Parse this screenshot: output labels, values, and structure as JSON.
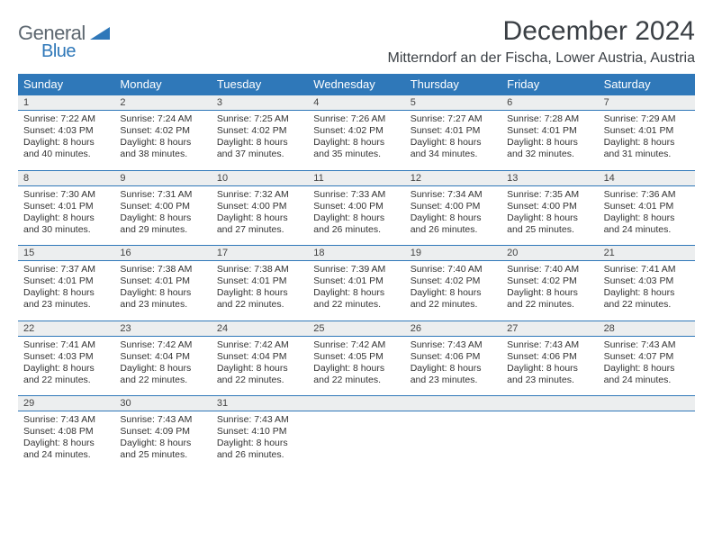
{
  "logo": {
    "line1": "General",
    "line2": "Blue"
  },
  "title": "December 2024",
  "location": "Mitterndorf an der Fischa, Lower Austria, Austria",
  "colors": {
    "header_bg": "#2f78b9",
    "header_text": "#ffffff",
    "daynum_bg": "#eceeef",
    "border": "#2f78b9",
    "body_text": "#333333",
    "logo_gray": "#5d6770",
    "logo_blue": "#2f78b9"
  },
  "dayNames": [
    "Sunday",
    "Monday",
    "Tuesday",
    "Wednesday",
    "Thursday",
    "Friday",
    "Saturday"
  ],
  "weeks": [
    {
      "nums": [
        "1",
        "2",
        "3",
        "4",
        "5",
        "6",
        "7"
      ],
      "cells": [
        {
          "sunrise": "Sunrise: 7:22 AM",
          "sunset": "Sunset: 4:03 PM",
          "day1": "Daylight: 8 hours",
          "day2": "and 40 minutes."
        },
        {
          "sunrise": "Sunrise: 7:24 AM",
          "sunset": "Sunset: 4:02 PM",
          "day1": "Daylight: 8 hours",
          "day2": "and 38 minutes."
        },
        {
          "sunrise": "Sunrise: 7:25 AM",
          "sunset": "Sunset: 4:02 PM",
          "day1": "Daylight: 8 hours",
          "day2": "and 37 minutes."
        },
        {
          "sunrise": "Sunrise: 7:26 AM",
          "sunset": "Sunset: 4:02 PM",
          "day1": "Daylight: 8 hours",
          "day2": "and 35 minutes."
        },
        {
          "sunrise": "Sunrise: 7:27 AM",
          "sunset": "Sunset: 4:01 PM",
          "day1": "Daylight: 8 hours",
          "day2": "and 34 minutes."
        },
        {
          "sunrise": "Sunrise: 7:28 AM",
          "sunset": "Sunset: 4:01 PM",
          "day1": "Daylight: 8 hours",
          "day2": "and 32 minutes."
        },
        {
          "sunrise": "Sunrise: 7:29 AM",
          "sunset": "Sunset: 4:01 PM",
          "day1": "Daylight: 8 hours",
          "day2": "and 31 minutes."
        }
      ]
    },
    {
      "nums": [
        "8",
        "9",
        "10",
        "11",
        "12",
        "13",
        "14"
      ],
      "cells": [
        {
          "sunrise": "Sunrise: 7:30 AM",
          "sunset": "Sunset: 4:01 PM",
          "day1": "Daylight: 8 hours",
          "day2": "and 30 minutes."
        },
        {
          "sunrise": "Sunrise: 7:31 AM",
          "sunset": "Sunset: 4:00 PM",
          "day1": "Daylight: 8 hours",
          "day2": "and 29 minutes."
        },
        {
          "sunrise": "Sunrise: 7:32 AM",
          "sunset": "Sunset: 4:00 PM",
          "day1": "Daylight: 8 hours",
          "day2": "and 27 minutes."
        },
        {
          "sunrise": "Sunrise: 7:33 AM",
          "sunset": "Sunset: 4:00 PM",
          "day1": "Daylight: 8 hours",
          "day2": "and 26 minutes."
        },
        {
          "sunrise": "Sunrise: 7:34 AM",
          "sunset": "Sunset: 4:00 PM",
          "day1": "Daylight: 8 hours",
          "day2": "and 26 minutes."
        },
        {
          "sunrise": "Sunrise: 7:35 AM",
          "sunset": "Sunset: 4:00 PM",
          "day1": "Daylight: 8 hours",
          "day2": "and 25 minutes."
        },
        {
          "sunrise": "Sunrise: 7:36 AM",
          "sunset": "Sunset: 4:01 PM",
          "day1": "Daylight: 8 hours",
          "day2": "and 24 minutes."
        }
      ]
    },
    {
      "nums": [
        "15",
        "16",
        "17",
        "18",
        "19",
        "20",
        "21"
      ],
      "cells": [
        {
          "sunrise": "Sunrise: 7:37 AM",
          "sunset": "Sunset: 4:01 PM",
          "day1": "Daylight: 8 hours",
          "day2": "and 23 minutes."
        },
        {
          "sunrise": "Sunrise: 7:38 AM",
          "sunset": "Sunset: 4:01 PM",
          "day1": "Daylight: 8 hours",
          "day2": "and 23 minutes."
        },
        {
          "sunrise": "Sunrise: 7:38 AM",
          "sunset": "Sunset: 4:01 PM",
          "day1": "Daylight: 8 hours",
          "day2": "and 22 minutes."
        },
        {
          "sunrise": "Sunrise: 7:39 AM",
          "sunset": "Sunset: 4:01 PM",
          "day1": "Daylight: 8 hours",
          "day2": "and 22 minutes."
        },
        {
          "sunrise": "Sunrise: 7:40 AM",
          "sunset": "Sunset: 4:02 PM",
          "day1": "Daylight: 8 hours",
          "day2": "and 22 minutes."
        },
        {
          "sunrise": "Sunrise: 7:40 AM",
          "sunset": "Sunset: 4:02 PM",
          "day1": "Daylight: 8 hours",
          "day2": "and 22 minutes."
        },
        {
          "sunrise": "Sunrise: 7:41 AM",
          "sunset": "Sunset: 4:03 PM",
          "day1": "Daylight: 8 hours",
          "day2": "and 22 minutes."
        }
      ]
    },
    {
      "nums": [
        "22",
        "23",
        "24",
        "25",
        "26",
        "27",
        "28"
      ],
      "cells": [
        {
          "sunrise": "Sunrise: 7:41 AM",
          "sunset": "Sunset: 4:03 PM",
          "day1": "Daylight: 8 hours",
          "day2": "and 22 minutes."
        },
        {
          "sunrise": "Sunrise: 7:42 AM",
          "sunset": "Sunset: 4:04 PM",
          "day1": "Daylight: 8 hours",
          "day2": "and 22 minutes."
        },
        {
          "sunrise": "Sunrise: 7:42 AM",
          "sunset": "Sunset: 4:04 PM",
          "day1": "Daylight: 8 hours",
          "day2": "and 22 minutes."
        },
        {
          "sunrise": "Sunrise: 7:42 AM",
          "sunset": "Sunset: 4:05 PM",
          "day1": "Daylight: 8 hours",
          "day2": "and 22 minutes."
        },
        {
          "sunrise": "Sunrise: 7:43 AM",
          "sunset": "Sunset: 4:06 PM",
          "day1": "Daylight: 8 hours",
          "day2": "and 23 minutes."
        },
        {
          "sunrise": "Sunrise: 7:43 AM",
          "sunset": "Sunset: 4:06 PM",
          "day1": "Daylight: 8 hours",
          "day2": "and 23 minutes."
        },
        {
          "sunrise": "Sunrise: 7:43 AM",
          "sunset": "Sunset: 4:07 PM",
          "day1": "Daylight: 8 hours",
          "day2": "and 24 minutes."
        }
      ]
    },
    {
      "nums": [
        "29",
        "30",
        "31",
        "",
        "",
        "",
        ""
      ],
      "cells": [
        {
          "sunrise": "Sunrise: 7:43 AM",
          "sunset": "Sunset: 4:08 PM",
          "day1": "Daylight: 8 hours",
          "day2": "and 24 minutes."
        },
        {
          "sunrise": "Sunrise: 7:43 AM",
          "sunset": "Sunset: 4:09 PM",
          "day1": "Daylight: 8 hours",
          "day2": "and 25 minutes."
        },
        {
          "sunrise": "Sunrise: 7:43 AM",
          "sunset": "Sunset: 4:10 PM",
          "day1": "Daylight: 8 hours",
          "day2": "and 26 minutes."
        },
        {
          "sunrise": "",
          "sunset": "",
          "day1": "",
          "day2": ""
        },
        {
          "sunrise": "",
          "sunset": "",
          "day1": "",
          "day2": ""
        },
        {
          "sunrise": "",
          "sunset": "",
          "day1": "",
          "day2": ""
        },
        {
          "sunrise": "",
          "sunset": "",
          "day1": "",
          "day2": ""
        }
      ]
    }
  ]
}
